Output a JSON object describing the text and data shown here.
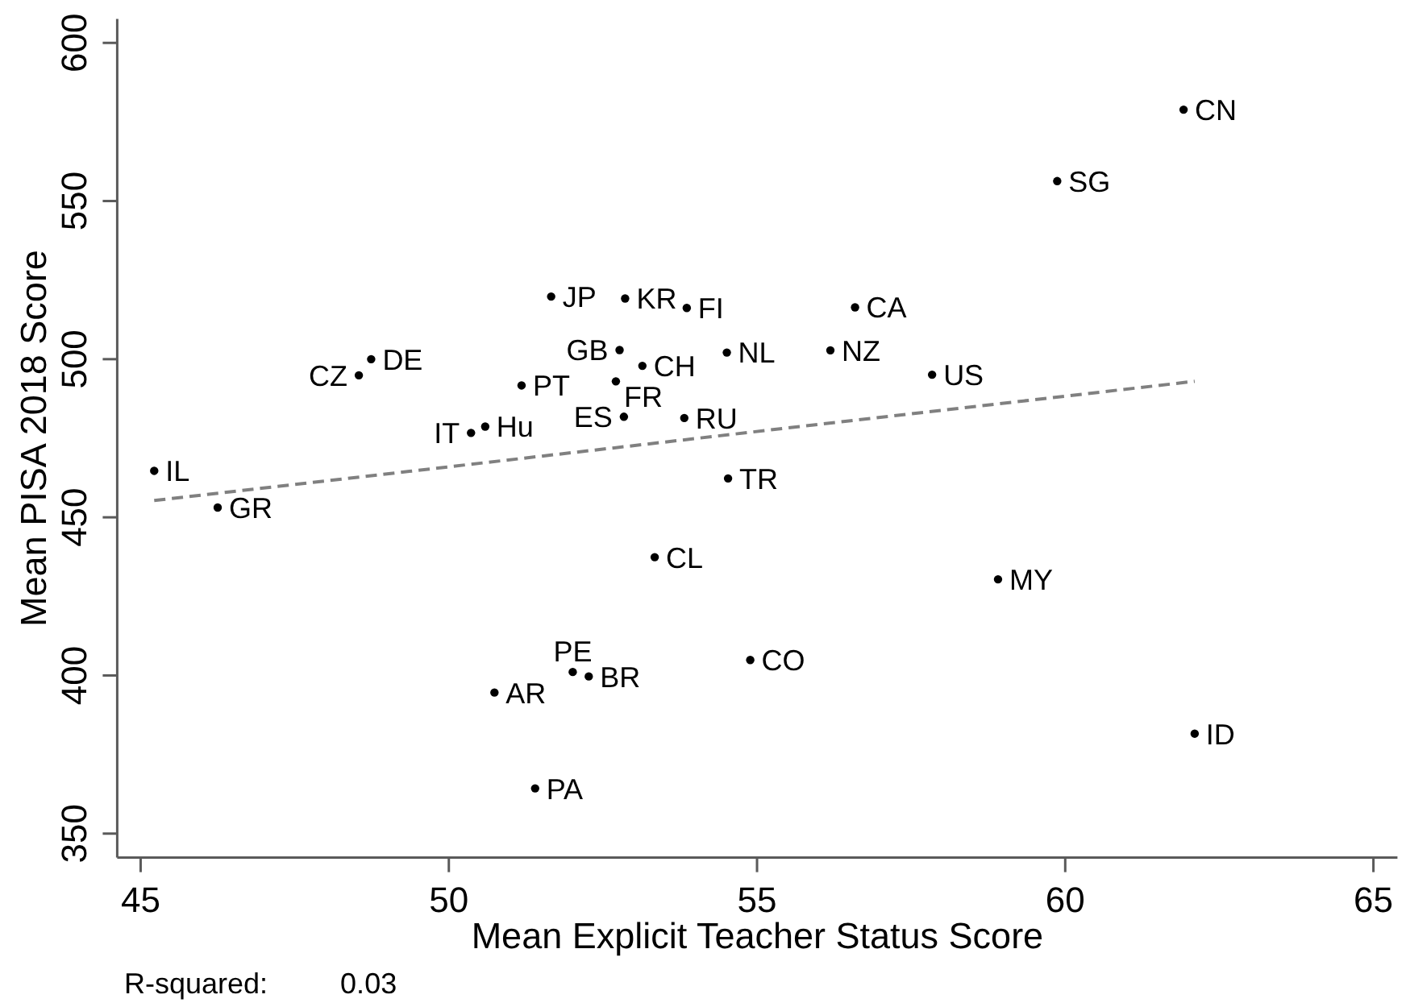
{
  "chart_data": {
    "type": "scatter",
    "xlabel": "Mean Explicit Teacher Status Score",
    "ylabel": "Mean PISA 2018 Score",
    "xlim": [
      44.62,
      65.39
    ],
    "ylim": [
      342.4,
      607.6
    ],
    "xticks": [
      45,
      50,
      55,
      60,
      65
    ],
    "yticks": [
      350,
      400,
      450,
      500,
      550,
      600
    ],
    "series": [
      {
        "marker": "circle",
        "color": "#000000",
        "x": [
          45.22,
          46.25,
          48.54,
          48.74,
          50.36,
          50.59,
          50.74,
          51.18,
          51.4,
          51.66,
          52.01,
          52.27,
          52.71,
          52.77,
          52.84,
          52.86,
          53.14,
          53.34,
          53.82,
          53.86,
          54.51,
          54.53,
          54.89,
          56.19,
          56.59,
          57.84,
          58.91,
          59.87,
          61.92,
          62.1
        ],
        "values": [
          464.7,
          453.1,
          494.9,
          500.0,
          476.7,
          478.7,
          394.6,
          491.7,
          364.3,
          519.8,
          401.1,
          399.7,
          493.0,
          502.9,
          481.8,
          519.2,
          497.9,
          437.4,
          481.4,
          516.2,
          502.1,
          462.3,
          404.9,
          502.8,
          516.4,
          495.1,
          430.4,
          556.3,
          578.9,
          381.6
        ],
        "value_labels": [
          "IL",
          "GR",
          "CZ",
          "DE",
          "IT",
          "Hu",
          "AR",
          "PT",
          "PA",
          "JP",
          "PE",
          "BR",
          "FR",
          "GB",
          "ES",
          "KR",
          "CH",
          "CL",
          "RU",
          "FI",
          "NL",
          "TR",
          "CO",
          "NZ",
          "CA",
          "US",
          "MY",
          "SG",
          "CN",
          "ID"
        ]
      },
      {
        "type": "line",
        "line_style": "dashed",
        "color": "#808080",
        "x": [
          45.22,
          62.1
        ],
        "values": [
          455.3,
          493.0
        ]
      }
    ],
    "annotations": [
      "R-squared:         0.03"
    ]
  }
}
